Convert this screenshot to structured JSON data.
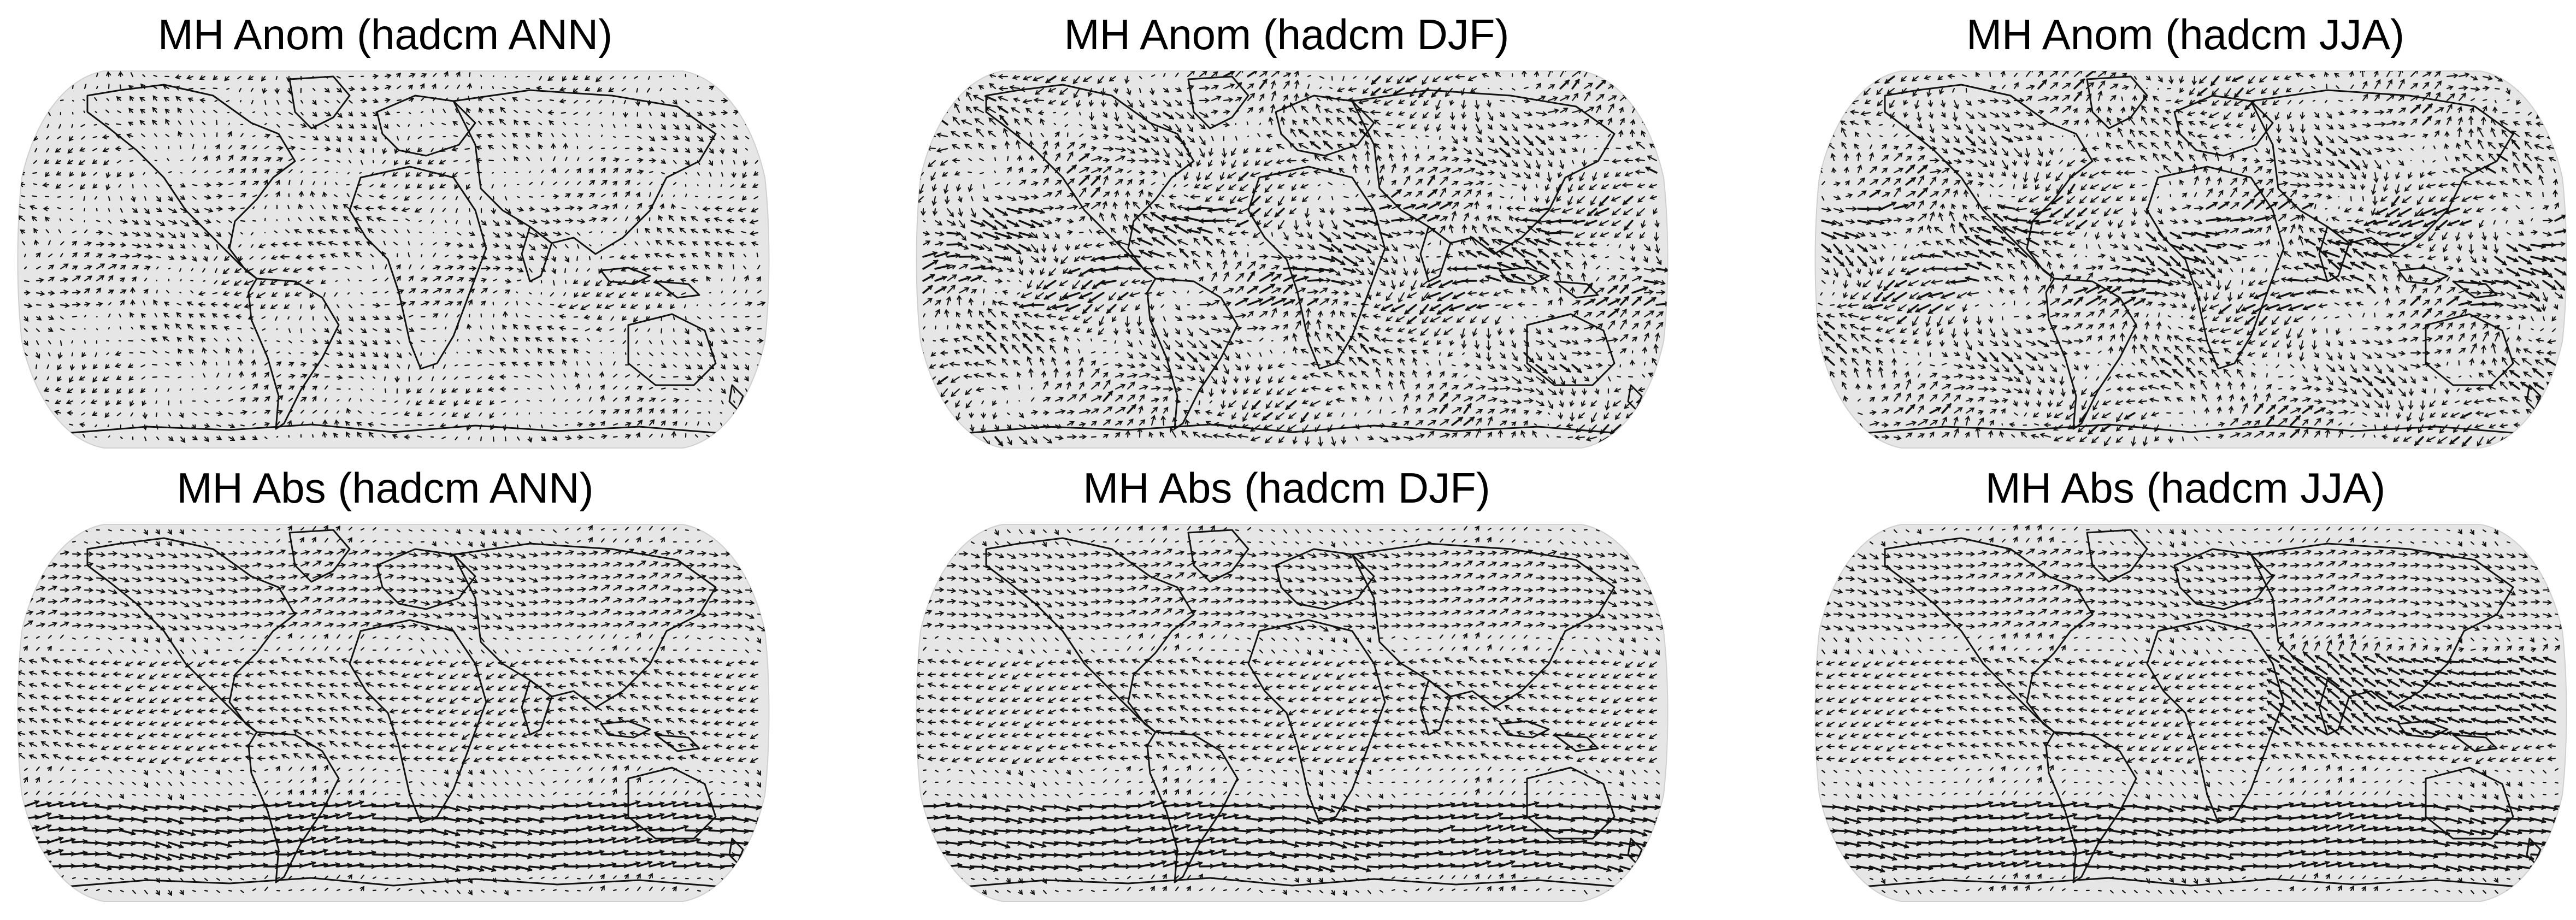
{
  "figure": {
    "panels": [
      {
        "id": "anom-ann",
        "title": "MH Anom (hadcm ANN)",
        "kind": "anomaly",
        "season": "ANN"
      },
      {
        "id": "anom-djf",
        "title": "MH Anom (hadcm DJF)",
        "kind": "anomaly",
        "season": "DJF"
      },
      {
        "id": "anom-jja",
        "title": "MH Anom (hadcm JJA)",
        "kind": "anomaly",
        "season": "JJA"
      },
      {
        "id": "abs-ann",
        "title": "MH Abs (hadcm ANN)",
        "kind": "absolute",
        "season": "ANN"
      },
      {
        "id": "abs-djf",
        "title": "MH Abs (hadcm DJF)",
        "kind": "absolute",
        "season": "DJF"
      },
      {
        "id": "abs-jja",
        "title": "MH Abs (hadcm JJA)",
        "kind": "absolute",
        "season": "JJA"
      }
    ],
    "projection": "Robinson",
    "map_fill_color": "#e6e6e6",
    "vector_color": "#111111",
    "coastline_color": "#111111"
  }
}
